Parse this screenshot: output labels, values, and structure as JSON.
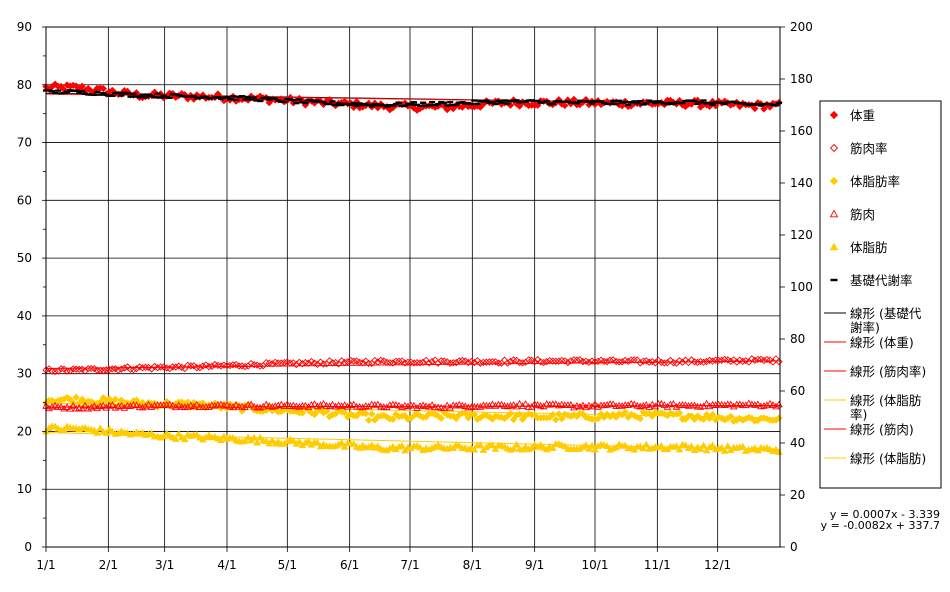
{
  "chart_data": {
    "type": "scatter",
    "x": {
      "ticks": [
        "1/1",
        "2/1",
        "3/1",
        "4/1",
        "5/1",
        "6/1",
        "7/1",
        "8/1",
        "9/1",
        "10/1",
        "11/1",
        "12/1"
      ],
      "range_days": [
        0,
        365
      ]
    },
    "y_left": {
      "ticks": [
        "0",
        "10",
        "20",
        "30",
        "40",
        "50",
        "60",
        "70",
        "80",
        "90"
      ],
      "range": [
        0,
        90
      ]
    },
    "y_right": {
      "ticks": [
        "0",
        "20",
        "40",
        "60",
        "80",
        "100",
        "120",
        "140",
        "160",
        "180",
        "200"
      ],
      "range": [
        0,
        200
      ]
    },
    "grid": true,
    "legend_position": "right",
    "series": [
      {
        "name": "体重",
        "marker": "diamond-filled",
        "color": "#ff0000",
        "axis": "left",
        "monthly": [
          79.5,
          78.2,
          78.0,
          77.6,
          76.9,
          76.3,
          76.1,
          76.9,
          76.9,
          76.8,
          76.8,
          76.4
        ],
        "jitter": 0.6
      },
      {
        "name": "筋肉率",
        "marker": "diamond-open",
        "color": "#ff0000",
        "axis": "left",
        "monthly": [
          30.6,
          31.0,
          31.2,
          31.6,
          31.9,
          32.1,
          32.1,
          32.1,
          32.2,
          32.1,
          32.1,
          32.3
        ],
        "jitter": 0.3
      },
      {
        "name": "体脂肪率",
        "marker": "diamond-filled",
        "color": "#ffcc00",
        "axis": "left",
        "monthly": [
          25.5,
          24.9,
          24.6,
          23.9,
          23.3,
          22.3,
          22.7,
          22.6,
          22.5,
          22.8,
          22.7,
          22.2
        ],
        "jitter": 0.6
      },
      {
        "name": "筋肉",
        "marker": "triangle-open",
        "color": "#ff0000",
        "axis": "left",
        "monthly": [
          24.2,
          24.4,
          24.5,
          24.4,
          24.5,
          24.4,
          24.3,
          24.6,
          24.4,
          24.5,
          24.5,
          24.6
        ],
        "jitter": 0.3
      },
      {
        "name": "体脂肪",
        "marker": "triangle-filled",
        "color": "#ffcc00",
        "axis": "left",
        "monthly": [
          20.5,
          19.5,
          19.0,
          18.5,
          17.8,
          17.1,
          17.2,
          17.2,
          17.4,
          17.3,
          17.3,
          16.9
        ],
        "jitter": 0.5
      },
      {
        "name": "基礎代謝率",
        "marker": "dash",
        "color": "#000000",
        "axis": "right",
        "monthly": [
          175.0,
          173.8,
          173.3,
          172.3,
          170.8,
          170.0,
          170.5,
          171.3,
          171.0,
          170.8,
          171.2,
          170.2
        ],
        "jitter": 0.8
      }
    ],
    "trendlines": [
      {
        "name": "線形 (基礎代謝率)",
        "color": "#000000",
        "axis": "right",
        "start": 174.5,
        "end": 170.2
      },
      {
        "name": "線形 (体重)",
        "color": "#ff0000",
        "axis": "left",
        "start": 78.4,
        "end": 76.6
      },
      {
        "name": "線形 (筋肉率)",
        "color": "#ff0000",
        "axis": "left",
        "start": 30.9,
        "end": 32.2
      },
      {
        "name": "線形 (体脂肪率)",
        "color": "#ffcc00",
        "axis": "left",
        "start": 24.9,
        "end": 22.3
      },
      {
        "name": "線形 (筋肉)",
        "color": "#ff0000",
        "axis": "left",
        "start": 24.2,
        "end": 24.5
      },
      {
        "name": "線形 (体脂肪)",
        "color": "#ffcc00",
        "axis": "left",
        "start": 19.8,
        "end": 16.8
      }
    ],
    "legend": [
      {
        "label": "体重",
        "kind": "marker",
        "marker": "diamond-filled",
        "color": "#ff0000"
      },
      {
        "label": "筋肉率",
        "kind": "marker",
        "marker": "diamond-open",
        "color": "#ff0000"
      },
      {
        "label": "体脂肪率",
        "kind": "marker",
        "marker": "diamond-filled",
        "color": "#ffcc00"
      },
      {
        "label": "筋肉",
        "kind": "marker",
        "marker": "triangle-open",
        "color": "#ff0000"
      },
      {
        "label": "体脂肪",
        "kind": "marker",
        "marker": "triangle-filled",
        "color": "#ffcc00"
      },
      {
        "label": "基礎代謝率",
        "kind": "marker",
        "marker": "dash",
        "color": "#000000"
      },
      {
        "label": "線形 (基礎代\n謝率)",
        "kind": "line",
        "color": "#000000"
      },
      {
        "label": "線形 (体重)",
        "kind": "line",
        "color": "#ff0000"
      },
      {
        "label": "線形 (筋肉率)",
        "kind": "line",
        "color": "#ff0000"
      },
      {
        "label": "線形 (体脂肪\n率)",
        "kind": "line",
        "color": "#ffcc00"
      },
      {
        "label": "線形 (筋肉)",
        "kind": "line",
        "color": "#ff0000"
      },
      {
        "label": "線形 (体脂肪)",
        "kind": "line",
        "color": "#ffcc00"
      }
    ],
    "equations": [
      "y = 0.0007x - 3.339",
      "y = -0.0082x + 337.7"
    ]
  }
}
